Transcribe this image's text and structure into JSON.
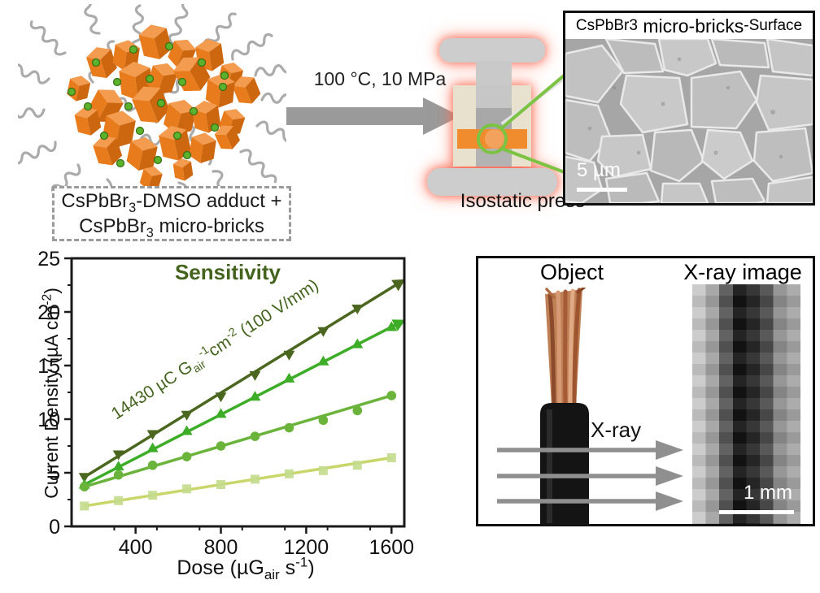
{
  "cluster": {
    "caption": {
      "l1a": "CsPbBr",
      "l1sub": "3",
      "l1b": "-DMSO adduct +",
      "l2a": "CsPbBr",
      "l2sub": "3",
      "l2b": " micro-bricks"
    }
  },
  "process": {
    "conditions": "100 °C, 10 MPa",
    "press_label": "Isostatic press"
  },
  "sem": {
    "formula": "CsPbBr",
    "formula_sub": "3",
    "title": " micro-bricks",
    "suffix": "-Surface",
    "scalebar": "5 µm"
  },
  "xray": {
    "object_title": "Object",
    "image_title": "X-ray image",
    "beam_label": "X-ray",
    "scalebar": "1 mm"
  },
  "chart_data": {
    "type": "scatter",
    "title": "Sensitivity",
    "title_color": "#44641e",
    "annotation_color": "#44641e",
    "xlabel_parts": {
      "pre": "Dose  (µG",
      "sub": "air",
      "mid": " s",
      "sup": "-1",
      "post": ")"
    },
    "ylabel_parts": {
      "pre": "Current Density  (µA cm",
      "sup": "-2",
      "post": ")"
    },
    "annotation_parts": {
      "p1": "14430 µC  G",
      "sub1": "air",
      "sup1": "-1",
      "p2": "cm",
      "sup2": "-2",
      "p3": " (100 V/mm)"
    },
    "xlim": [
      100,
      1660
    ],
    "ylim": [
      0,
      25
    ],
    "xticks": [
      400,
      800,
      1200,
      1600
    ],
    "yticks": [
      0,
      5,
      10,
      15,
      20,
      25
    ],
    "xminor_step": 200,
    "yminor_step": 2.5,
    "series": [
      {
        "name": "dark-green-triangle-down",
        "marker": "triangle-down",
        "color": "#4b671f",
        "arrow_end": true,
        "x": [
          160,
          320,
          480,
          640,
          800,
          960,
          1120,
          1280,
          1440
        ],
        "values": [
          4.6,
          6.7,
          8.6,
          10.4,
          12.1,
          14.1,
          16.0,
          18.2,
          20.3
        ]
      },
      {
        "name": "green-triangle-up",
        "marker": "triangle-up",
        "color": "#3dad27",
        "arrow_end": true,
        "x": [
          160,
          320,
          480,
          640,
          800,
          960,
          1120,
          1280,
          1440,
          1600
        ],
        "values": [
          3.9,
          5.6,
          7.3,
          8.9,
          10.5,
          12.1,
          13.8,
          15.4,
          17.0,
          18.6
        ]
      },
      {
        "name": "green-circle",
        "marker": "circle",
        "color": "#6ab43c",
        "arrow_end": false,
        "x": [
          160,
          320,
          480,
          640,
          800,
          960,
          1120,
          1280,
          1440,
          1600
        ],
        "values": [
          3.7,
          4.8,
          5.7,
          6.5,
          7.5,
          8.4,
          9.2,
          9.9,
          10.8,
          12.2
        ]
      },
      {
        "name": "light-green-square",
        "marker": "square",
        "color": "#c9d66a",
        "marker_color": "#c3dc8d",
        "arrow_end": false,
        "x": [
          160,
          320,
          480,
          640,
          800,
          960,
          1120,
          1280,
          1440,
          1600
        ],
        "values": [
          1.9,
          2.4,
          2.9,
          3.5,
          3.9,
          4.4,
          4.9,
          5.2,
          5.7,
          6.4
        ]
      }
    ]
  }
}
